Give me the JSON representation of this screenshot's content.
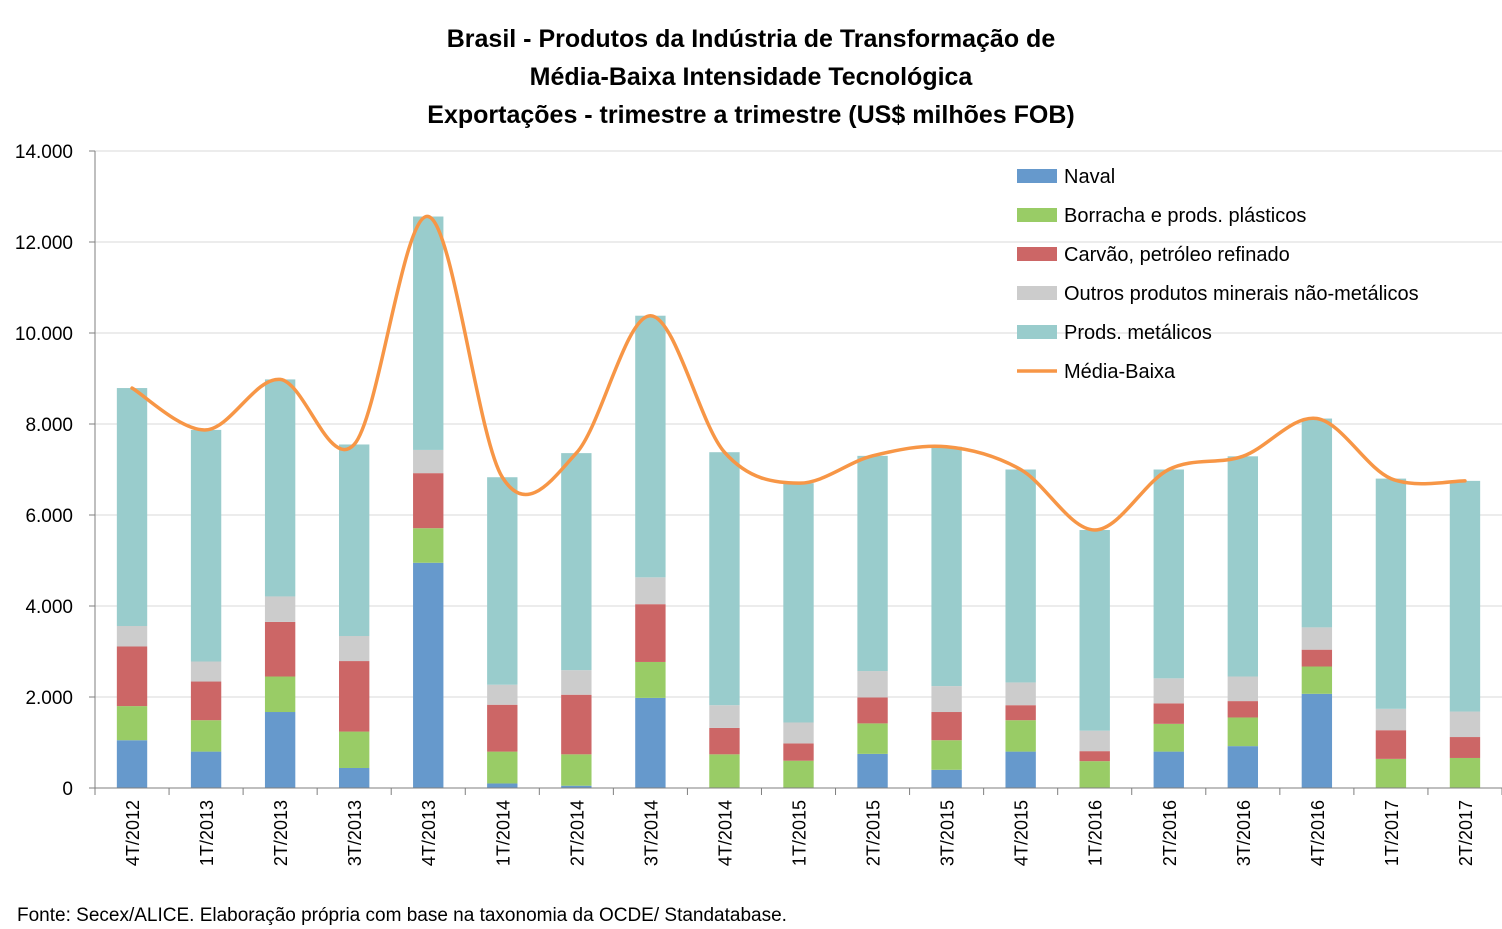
{
  "chart_data": {
    "type": "bar",
    "stacked": true,
    "title": [
      "Brasil - Produtos da Indústria de Transformação de",
      "Média-Baixa Intensidade Tecnológica",
      "Exportações - trimestre a trimestre (US$ milhões FOB)"
    ],
    "source": "Fonte: Secex/ALICE. Elaboração própria com base na taxonomia da OCDE/ Standatabase.",
    "ylim": [
      0,
      14000
    ],
    "yticks": [
      0,
      2000,
      4000,
      6000,
      8000,
      10000,
      12000,
      14000
    ],
    "ytick_labels": [
      "0",
      "2.000",
      "4.000",
      "6.000",
      "8.000",
      "10.000",
      "12.000",
      "14.000"
    ],
    "grid": true,
    "legend_position": "top-right",
    "categories": [
      "4T/2012",
      "1T/2013",
      "2T/2013",
      "3T/2013",
      "4T/2013",
      "1T/2014",
      "2T/2014",
      "3T/2014",
      "4T/2014",
      "1T/2015",
      "2T/2015",
      "3T/2015",
      "4T/2015",
      "1T/2016",
      "2T/2016",
      "3T/2016",
      "4T/2016",
      "1T/2017",
      "2T/2017"
    ],
    "series": [
      {
        "name": "Naval",
        "color": "#6699cc",
        "values": [
          1050,
          800,
          1670,
          440,
          4950,
          100,
          50,
          1980,
          0,
          0,
          750,
          400,
          800,
          0,
          800,
          920,
          2070,
          0,
          0
        ]
      },
      {
        "name": "Borracha e prods. plásticos",
        "color": "#99cc66",
        "values": [
          750,
          690,
          780,
          800,
          760,
          700,
          690,
          790,
          740,
          600,
          670,
          650,
          690,
          590,
          610,
          630,
          600,
          640,
          660
        ]
      },
      {
        "name": "Carvão, petróleo refinado",
        "color": "#cc6666",
        "values": [
          1310,
          850,
          1200,
          1550,
          1210,
          1030,
          1310,
          1270,
          580,
          380,
          570,
          620,
          330,
          220,
          450,
          360,
          370,
          630,
          460
        ]
      },
      {
        "name": "Outros produtos minerais não-metálicos",
        "color": "#cccccc",
        "values": [
          450,
          440,
          560,
          550,
          510,
          440,
          540,
          590,
          500,
          460,
          580,
          570,
          500,
          450,
          550,
          540,
          490,
          470,
          560
        ]
      },
      {
        "name": "Prods. metálicos",
        "color": "#99cccc",
        "values": [
          5230,
          5090,
          4770,
          4210,
          5130,
          4560,
          4770,
          5750,
          5560,
          5260,
          4730,
          5260,
          4680,
          4410,
          4590,
          4840,
          4590,
          5060,
          5070
        ]
      }
    ],
    "line": {
      "name": "Média-Baixa",
      "color": "#f79646",
      "values": [
        8790,
        7870,
        8980,
        7550,
        12560,
        6830,
        7360,
        10380,
        7380,
        6700,
        7300,
        7500,
        7000,
        5670,
        7000,
        7290,
        8120,
        6800,
        6750
      ]
    }
  }
}
